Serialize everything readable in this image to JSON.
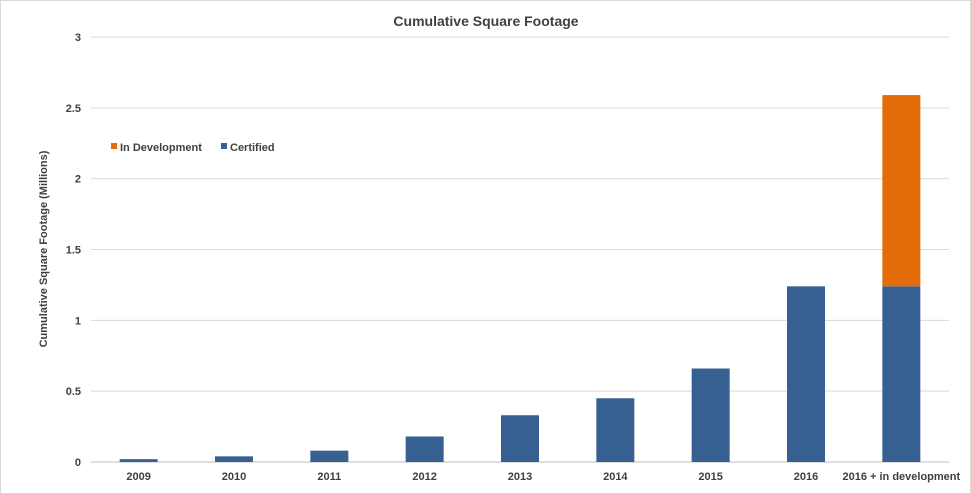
{
  "chart_data": {
    "type": "bar",
    "stacked": true,
    "title": "Cumulative Square Footage",
    "xlabel": "",
    "ylabel": "Cumulative Square Footage (Millions)",
    "ylim": [
      0,
      3
    ],
    "yticks": [
      "0",
      "0.5",
      "1",
      "1.5",
      "2",
      "2.5",
      "3"
    ],
    "grid": true,
    "legend_position": "top-left",
    "categories": [
      "2009",
      "2010",
      "2011",
      "2012",
      "2013",
      "2014",
      "2015",
      "2016",
      "2016 + in development"
    ],
    "series": [
      {
        "name": "Certified",
        "color": "#376092",
        "values": [
          0.02,
          0.04,
          0.08,
          0.18,
          0.33,
          0.45,
          0.66,
          1.24,
          1.24
        ]
      },
      {
        "name": "In Development",
        "color": "#E46C0A",
        "values": [
          0,
          0,
          0,
          0,
          0,
          0,
          0,
          0,
          1.35
        ]
      }
    ],
    "legend": [
      "In Development",
      "Certified"
    ]
  }
}
